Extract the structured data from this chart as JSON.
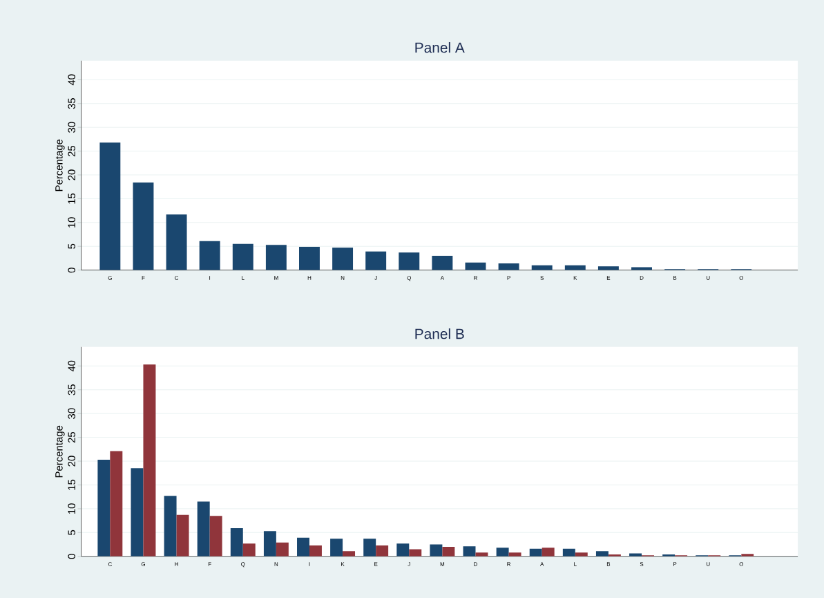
{
  "chart_data": [
    {
      "type": "bar",
      "title": "Panel A",
      "ylabel": "Percentage",
      "categories": [
        "G",
        "F",
        "C",
        "I",
        "L",
        "M",
        "H",
        "N",
        "J",
        "Q",
        "A",
        "R",
        "P",
        "S",
        "K",
        "E",
        "D",
        "B",
        "U",
        "O"
      ],
      "color": "#1a476f",
      "values": [
        26.8,
        18.4,
        11.7,
        6.1,
        5.5,
        5.3,
        4.9,
        4.7,
        3.9,
        3.7,
        3.0,
        1.6,
        1.4,
        1.0,
        1.0,
        0.8,
        0.6,
        0.2,
        0.2,
        0.2
      ],
      "ylim": [
        0,
        44
      ],
      "yticks": [
        0,
        5,
        10,
        15,
        20,
        25,
        30,
        35,
        40
      ],
      "grid": "y"
    },
    {
      "type": "bar",
      "title": "Panel B",
      "ylabel": "Percentage",
      "categories": [
        "C",
        "G",
        "H",
        "F",
        "Q",
        "N",
        "I",
        "K",
        "E",
        "J",
        "M",
        "D",
        "R",
        "A",
        "L",
        "B",
        "S",
        "P",
        "U",
        "O"
      ],
      "series": [
        {
          "color": "#1a476f",
          "values": [
            20.3,
            18.5,
            12.7,
            11.5,
            5.9,
            5.3,
            3.9,
            3.7,
            3.7,
            2.7,
            2.5,
            2.1,
            1.8,
            1.6,
            1.6,
            1.1,
            0.6,
            0.4,
            0.2,
            0.2
          ]
        },
        {
          "color": "#90353b",
          "values": [
            22.1,
            40.3,
            8.7,
            8.5,
            2.7,
            2.9,
            2.3,
            1.1,
            2.3,
            1.5,
            2.0,
            0.8,
            0.8,
            1.8,
            0.8,
            0.4,
            0.2,
            0.2,
            0.2,
            0.5
          ]
        }
      ],
      "ylim": [
        0,
        44
      ],
      "yticks": [
        0,
        5,
        10,
        15,
        20,
        25,
        30,
        35,
        40
      ],
      "grid": "y"
    }
  ]
}
